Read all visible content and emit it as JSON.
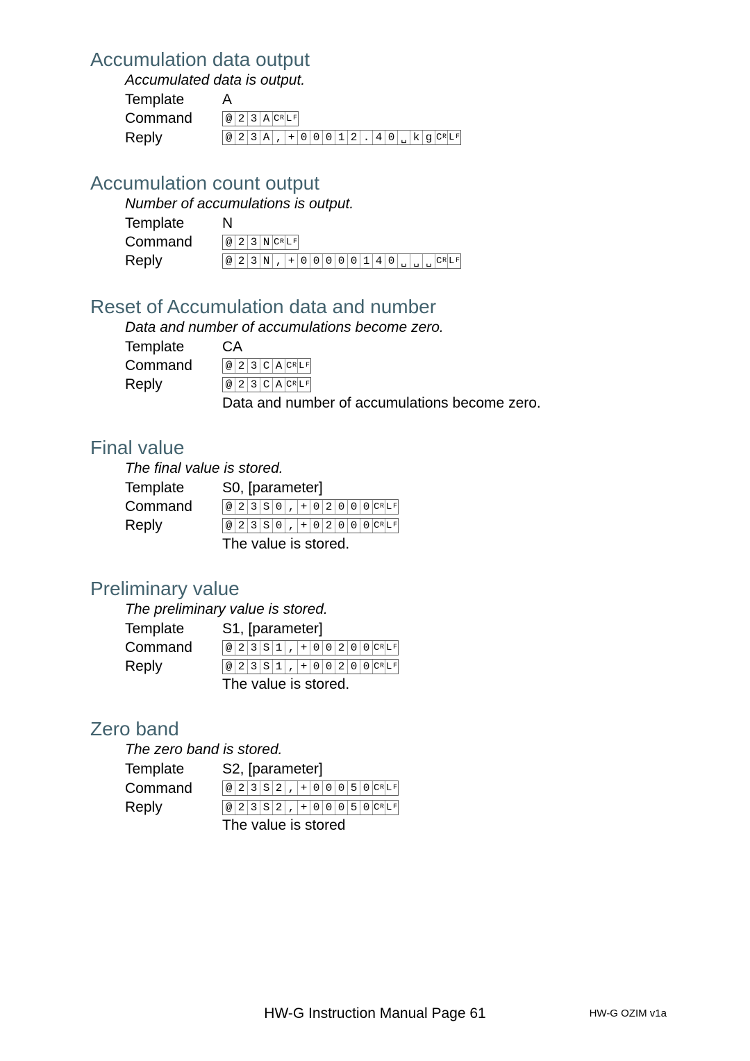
{
  "sections": [
    {
      "title": "Accumulation data output",
      "subtitle": "Accumulated data is output.",
      "template": "A",
      "command_cells": [
        "@",
        "2",
        "3",
        "A",
        "CR",
        "LF"
      ],
      "reply_cells": [
        "@",
        "2",
        "3",
        "A",
        ",",
        "+",
        "0",
        "0",
        "0",
        "1",
        "2",
        ".",
        "4",
        "0",
        "␣",
        "k",
        "g",
        "CR",
        "LF"
      ],
      "note": null
    },
    {
      "title": "Accumulation count output",
      "subtitle": "Number of accumulations is output.",
      "template": "N",
      "command_cells": [
        "@",
        "2",
        "3",
        "N",
        "CR",
        "LF"
      ],
      "reply_cells": [
        "@",
        "2",
        "3",
        "N",
        ",",
        "+",
        "0",
        "0",
        "0",
        "0",
        "0",
        "1",
        "4",
        "0",
        "␣",
        "␣",
        "␣",
        "CR",
        "LF"
      ],
      "note": null
    },
    {
      "title": "Reset of Accumulation data and number",
      "subtitle": "Data and number of accumulations become zero.",
      "template": "CA",
      "command_cells": [
        "@",
        "2",
        "3",
        "C",
        "A",
        "CR",
        "LF"
      ],
      "reply_cells": [
        "@",
        "2",
        "3",
        "C",
        "A",
        "CR",
        "LF"
      ],
      "note": "Data and number of accumulations become zero."
    },
    {
      "title": "Final value",
      "subtitle": "The final value is stored.",
      "template": "S0, [parameter]",
      "command_cells": [
        "@",
        "2",
        "3",
        "S",
        "0",
        ",",
        "+",
        "0",
        "2",
        "0",
        "0",
        "0",
        "CR",
        "LF"
      ],
      "reply_cells": [
        "@",
        "2",
        "3",
        "S",
        "0",
        ",",
        "+",
        "0",
        "2",
        "0",
        "0",
        "0",
        "CR",
        "LF"
      ],
      "note": "The value is stored."
    },
    {
      "title": "Preliminary value",
      "subtitle": "The preliminary value is stored.",
      "template": "S1, [parameter]",
      "command_cells": [
        "@",
        "2",
        "3",
        "S",
        "1",
        ",",
        "+",
        "0",
        "0",
        "2",
        "0",
        "0",
        "CR",
        "LF"
      ],
      "reply_cells": [
        "@",
        "2",
        "3",
        "S",
        "1",
        ",",
        "+",
        "0",
        "0",
        "2",
        "0",
        "0",
        "CR",
        "LF"
      ],
      "note": "The value is stored."
    },
    {
      "title": "Zero band",
      "subtitle": "The zero band is stored.",
      "template": "S2, [parameter]",
      "command_cells": [
        "@",
        "2",
        "3",
        "S",
        "2",
        ",",
        "+",
        "0",
        "0",
        "0",
        "5",
        "0",
        "CR",
        "LF"
      ],
      "reply_cells": [
        "@",
        "2",
        "3",
        "S",
        "2",
        ",",
        "+",
        "0",
        "0",
        "0",
        "5",
        "0",
        "CR",
        "LF"
      ],
      "note": "The value is stored"
    }
  ],
  "labels": {
    "template": "Template",
    "command": "Command",
    "reply": "Reply"
  },
  "footer_center": "HW-G Instruction Manual Page 61",
  "footer_right": "HW-G OZIM v1a"
}
